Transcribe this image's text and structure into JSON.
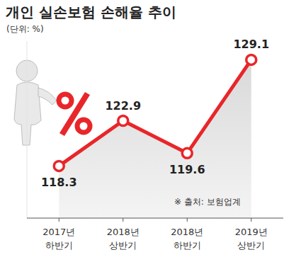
{
  "chart_data": {
    "type": "line",
    "title": "개인 실손보험 손해율 추이",
    "subtitle": "(단위: %)",
    "annotations": [
      "※ 출처: 보험업계"
    ],
    "categories": [
      "2017년 하반기",
      "2018년 상반기",
      "2018년 하반기",
      "2019년 상반기"
    ],
    "values": [
      118.3,
      122.9,
      119.6,
      129.1
    ],
    "color": "#e8262a",
    "ylim": [
      113,
      131
    ],
    "marker": "circle",
    "data_labels": true,
    "tick_labels": "x",
    "grid": false
  }
}
